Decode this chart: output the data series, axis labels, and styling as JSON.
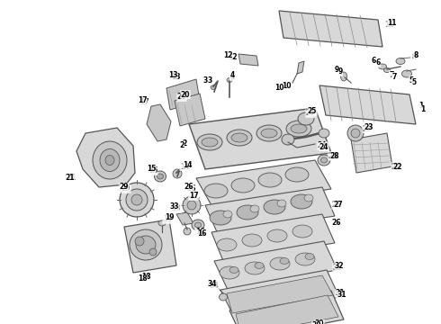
{
  "bg_color": "#ffffff",
  "figsize": [
    4.9,
    3.6
  ],
  "dpi": 100,
  "line_color": "#555555",
  "gray1": "#d8d8d8",
  "gray2": "#c8c8c8",
  "gray3": "#b8b8b8",
  "gray4": "#e5e5e5"
}
